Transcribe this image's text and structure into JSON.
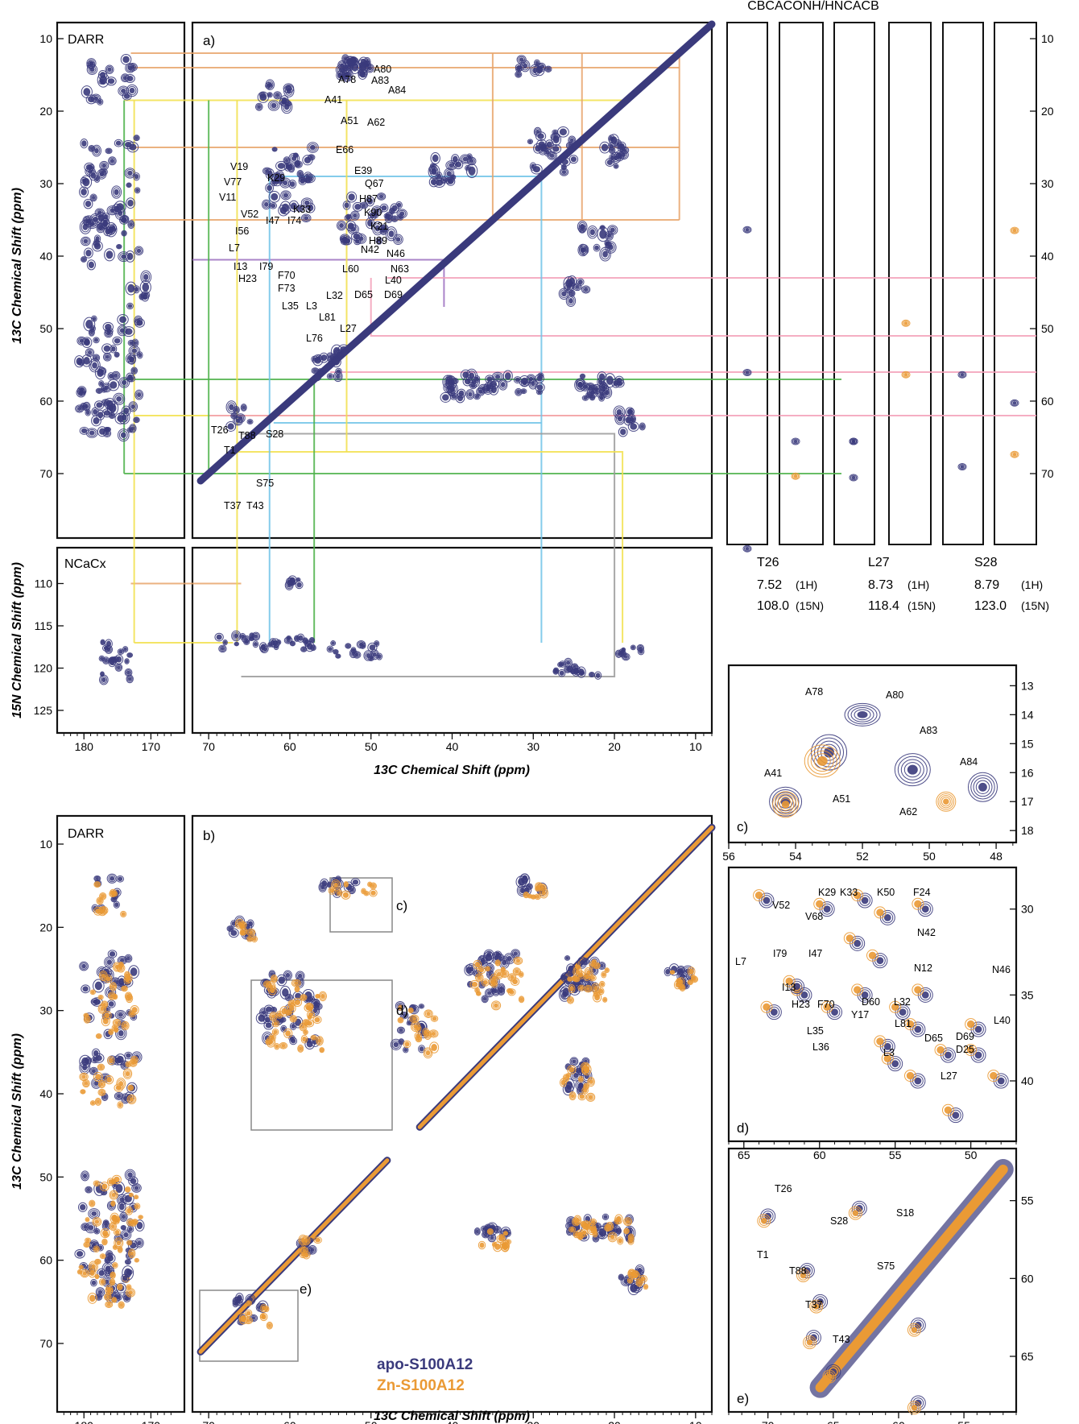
{
  "figure": {
    "strip_title": "CBCACONH/HNCACB",
    "panel_a_tag": "a)",
    "panel_b_tag": "b)",
    "panel_c_tag": "c)",
    "panel_d_tag": "d)",
    "panel_e_tag": "e)",
    "box_c_tag": "c)",
    "box_d_tag": "d)",
    "box_e_tag": "e)",
    "darr_label_a": "DARR",
    "darr_label_b": "DARR",
    "ncacx_label": "NCaCx",
    "c13_x_title": "13C Chemical Shift (ppm)",
    "c13_y_title": "13C Chemical Shift (ppm)",
    "n15_y_title": "15N Chemical Shift (ppm)",
    "legend": {
      "apo": "apo-S100A12",
      "zn": "Zn-S100A12",
      "apo_color": "#3a3a7c",
      "zn_color": "#ea9a35"
    },
    "residue_info": [
      {
        "name": "T26",
        "h": "7.52",
        "h_unit": "(1H)",
        "n": "108.0",
        "n_unit": "(15N)"
      },
      {
        "name": "L27",
        "h": "8.73",
        "h_unit": "(1H)",
        "n": "118.4",
        "n_unit": "(15N)"
      },
      {
        "name": "S28",
        "h": "8.79",
        "h_unit": "(1H)",
        "n": "123.0",
        "n_unit": "(15N)"
      }
    ],
    "ticks": {
      "c13_main_x": [
        "70",
        "60",
        "50",
        "40",
        "30",
        "20",
        "10"
      ],
      "carbonyl_x": [
        "180",
        "170"
      ],
      "c13_y": [
        "10",
        "20",
        "30",
        "40",
        "50",
        "60",
        "70"
      ],
      "n15_y": [
        "110",
        "115",
        "120",
        "125"
      ],
      "c_x": [
        "56",
        "54",
        "52",
        "50",
        "48"
      ],
      "c_y": [
        "13",
        "14",
        "15",
        "16",
        "17",
        "18"
      ],
      "d_x": [
        "65",
        "60",
        "55",
        "50"
      ],
      "d_y": [
        "30",
        "35",
        "40"
      ],
      "e_x": [
        "70",
        "65",
        "60",
        "55"
      ],
      "e_y": [
        "55",
        "60",
        "65"
      ]
    },
    "panel_a_labels": [
      "A80",
      "A78",
      "A83",
      "A84",
      "A41",
      "A51",
      "A62",
      "E66",
      "E39",
      "Q67",
      "H87",
      "V19",
      "K29",
      "V77",
      "V11",
      "K33",
      "K90",
      "V52",
      "I47",
      "I74",
      "K21",
      "H89",
      "N42",
      "N46",
      "I56",
      "L7",
      "I13",
      "I79",
      "H23",
      "F70",
      "L60",
      "N63",
      "L40",
      "F73",
      "L32",
      "D65",
      "D69",
      "L35",
      "L3",
      "L81",
      "L27",
      "L76",
      "T26",
      "T88",
      "S28",
      "T1",
      "S75",
      "T37",
      "T43"
    ],
    "panel_c_labels": [
      "A78",
      "A80",
      "A83",
      "A84",
      "A41",
      "A51",
      "A62"
    ],
    "panel_d_labels": [
      "V52",
      "K29",
      "K33",
      "K50",
      "F24",
      "V68",
      "N42",
      "L7",
      "I79",
      "I47",
      "N12",
      "N46",
      "I13",
      "H23",
      "F70",
      "D60",
      "L32",
      "Y17",
      "L81",
      "L40",
      "L35",
      "D65",
      "D69",
      "L36",
      "L3",
      "D25",
      "L27"
    ],
    "panel_e_labels": [
      "T26",
      "S28",
      "S18",
      "T1",
      "S75",
      "T88",
      "T37",
      "T43"
    ]
  }
}
